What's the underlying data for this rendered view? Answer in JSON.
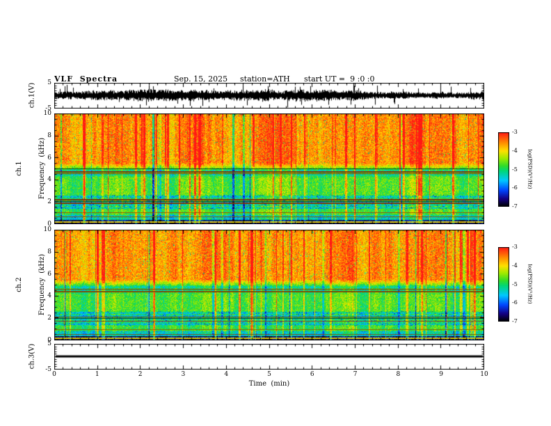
{
  "header": {
    "title": "VLF  Spectra",
    "date": "Sep. 15, 2025",
    "station": "station=ATH",
    "start_ut": "start UT =  9 :0 :0"
  },
  "panels": {
    "wave1": {
      "ylabel": "ch.1(V)",
      "yticks": [
        "5",
        "-5"
      ]
    },
    "spec1": {
      "channel": "ch.1",
      "ylabel": "Frequency  (kHz)",
      "yticks": [
        "10",
        "8",
        "6",
        "4",
        "2",
        "0"
      ]
    },
    "spec2": {
      "channel": "ch.2",
      "ylabel": "Frequency  (kHz)",
      "yticks": [
        "10",
        "8",
        "6",
        "4",
        "2",
        "0"
      ]
    },
    "wave3": {
      "ylabel": "ch.3(V)",
      "yticks": [
        "5",
        "-5"
      ]
    }
  },
  "xaxis": {
    "label": "Time  (min)",
    "ticks": [
      "0",
      "1",
      "2",
      "3",
      "4",
      "5",
      "6",
      "7",
      "8",
      "9",
      "10"
    ]
  },
  "colorbars": [
    {
      "label": "log(PSD)(V²/Hz)",
      "ticks": [
        "-3",
        "-4",
        "-5",
        "-6",
        "-7"
      ]
    },
    {
      "label": "log(PSD)(V²/Hz)",
      "ticks": [
        "-3",
        "-4",
        "-5",
        "-6",
        "-7"
      ]
    }
  ],
  "chart_data": [
    {
      "type": "line",
      "name": "ch.1 voltage waveform",
      "xlabel": "Time (min)",
      "ylabel": "ch.1(V)",
      "x_range": [
        0,
        10
      ],
      "y_range": [
        -5,
        5
      ],
      "series": [
        {
          "name": "ch.1",
          "description": "continuous dense broadband noise, zero mean, typical envelope ±2.5 V with frequent spikes reaching ±4.5 V over the full 10 minutes"
        }
      ]
    },
    {
      "type": "heatmap",
      "name": "ch.1 spectrogram",
      "xlabel": "Time (min)",
      "ylabel": "Frequency (kHz)",
      "x_range": [
        0,
        10
      ],
      "y_range": [
        0,
        10
      ],
      "z_label": "log(PSD)(V²/Hz)",
      "z_range": [
        -7,
        -3
      ],
      "legend_position": "right colorbar",
      "grid": false,
      "description": "high power (red, ~ -3) above ~5 kHz with dense vertical burst striping through all frequencies; mixed green/yellow (~ -4.5) from 2.6-5 kHz; cyan/blue horizontally banded region 1.3-2.6 kHz; narrow persistent horizontal interference lines near 5.0, 4.7, 2.2, 2.0, 1.0 and 0.6 kHz; very low power (black, ~ -7) below ~0.35 kHz"
    },
    {
      "type": "heatmap",
      "name": "ch.2 spectrogram",
      "xlabel": "Time (min)",
      "ylabel": "Frequency (kHz)",
      "x_range": [
        0,
        10
      ],
      "y_range": [
        0,
        10
      ],
      "z_label": "log(PSD)(V²/Hz)",
      "z_range": [
        -7,
        -3
      ],
      "legend_position": "right colorbar",
      "grid": false,
      "description": "same structure as ch.1: red burst-striped band above ~5 kHz, green mid band, cyan banded 1.3-2.6 kHz, persistent horizontal lines near 4.6, 4.4, 2.1, 1.95, 1.7, 0.95 and 0.5 kHz, black band below ~0.35 kHz"
    },
    {
      "type": "line",
      "name": "ch.3 voltage waveform",
      "xlabel": "Time (min)",
      "ylabel": "ch.3(V)",
      "x_range": [
        0,
        10
      ],
      "y_range": [
        -5,
        5
      ],
      "series": [
        {
          "name": "ch.3",
          "description": "flat constant 0 V line (no signal) across all 10 minutes"
        }
      ]
    }
  ],
  "colors": {
    "background": "#ffffff",
    "frame": "#000000",
    "trace": "#000000",
    "colormap_low": "#000000",
    "colormap_high": "#ff1914"
  }
}
